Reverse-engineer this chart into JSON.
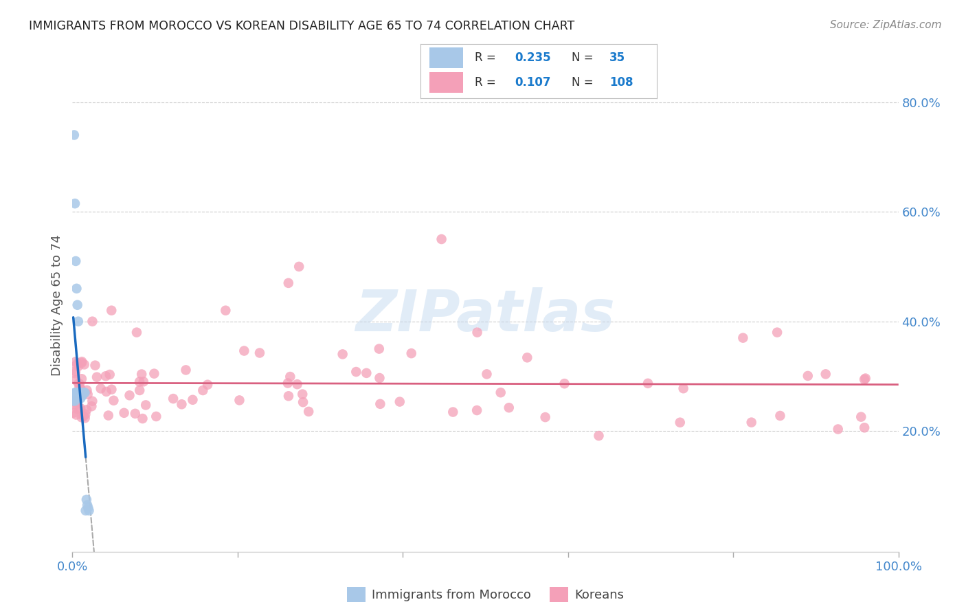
{
  "title": "IMMIGRANTS FROM MOROCCO VS KOREAN DISABILITY AGE 65 TO 74 CORRELATION CHART",
  "source": "Source: ZipAtlas.com",
  "ylabel": "Disability Age 65 to 74",
  "xlim": [
    0,
    1.0
  ],
  "ylim": [
    -0.02,
    0.88
  ],
  "morocco_R": "0.235",
  "morocco_N": "35",
  "korean_R": "0.107",
  "korean_N": "108",
  "morocco_color": "#a8c8e8",
  "korean_color": "#f4a0b8",
  "morocco_line_color": "#1a6abf",
  "korean_line_color": "#d96080",
  "legend_color": "#1a7acc",
  "background_color": "#ffffff",
  "grid_color": "#cccccc",
  "morocco_x": [
    0.001,
    0.001,
    0.002,
    0.002,
    0.003,
    0.003,
    0.003,
    0.004,
    0.004,
    0.004,
    0.005,
    0.005,
    0.005,
    0.006,
    0.006,
    0.007,
    0.007,
    0.007,
    0.008,
    0.008,
    0.009,
    0.009,
    0.01,
    0.01,
    0.011,
    0.011,
    0.012,
    0.013,
    0.014,
    0.015,
    0.016,
    0.017,
    0.018,
    0.019,
    0.02
  ],
  "morocco_y": [
    0.265,
    0.255,
    0.74,
    0.26,
    0.615,
    0.27,
    0.255,
    0.51,
    0.27,
    0.26,
    0.46,
    0.27,
    0.26,
    0.43,
    0.265,
    0.4,
    0.27,
    0.265,
    0.265,
    0.27,
    0.265,
    0.27,
    0.27,
    0.26,
    0.27,
    0.265,
    0.265,
    0.27,
    0.27,
    0.27,
    0.055,
    0.075,
    0.065,
    0.06,
    0.055
  ],
  "korean_x": [
    0.002,
    0.003,
    0.004,
    0.005,
    0.006,
    0.007,
    0.008,
    0.009,
    0.01,
    0.011,
    0.012,
    0.013,
    0.014,
    0.015,
    0.016,
    0.017,
    0.018,
    0.019,
    0.02,
    0.022,
    0.025,
    0.028,
    0.03,
    0.033,
    0.036,
    0.04,
    0.044,
    0.048,
    0.052,
    0.058,
    0.063,
    0.068,
    0.074,
    0.08,
    0.086,
    0.092,
    0.098,
    0.105,
    0.112,
    0.12,
    0.128,
    0.136,
    0.145,
    0.154,
    0.163,
    0.172,
    0.182,
    0.192,
    0.202,
    0.213,
    0.224,
    0.235,
    0.247,
    0.259,
    0.272,
    0.285,
    0.298,
    0.312,
    0.326,
    0.34,
    0.355,
    0.37,
    0.385,
    0.4,
    0.416,
    0.432,
    0.448,
    0.465,
    0.482,
    0.499,
    0.516,
    0.534,
    0.552,
    0.57,
    0.589,
    0.608,
    0.627,
    0.647,
    0.667,
    0.687,
    0.708,
    0.729,
    0.75,
    0.772,
    0.794,
    0.816,
    0.838,
    0.86,
    0.882,
    0.905,
    0.928,
    0.951,
    0.974,
    0.005,
    0.008,
    0.012,
    0.018,
    0.025,
    0.035,
    0.05,
    0.07,
    0.09,
    0.11,
    0.14,
    0.175,
    0.215,
    0.26,
    0.31
  ],
  "korean_y": [
    0.285,
    0.27,
    0.28,
    0.29,
    0.295,
    0.285,
    0.275,
    0.28,
    0.285,
    0.27,
    0.275,
    0.28,
    0.285,
    0.265,
    0.27,
    0.275,
    0.265,
    0.26,
    0.27,
    0.265,
    0.28,
    0.26,
    0.27,
    0.275,
    0.265,
    0.27,
    0.28,
    0.265,
    0.26,
    0.27,
    0.265,
    0.255,
    0.275,
    0.26,
    0.265,
    0.27,
    0.255,
    0.265,
    0.26,
    0.27,
    0.255,
    0.265,
    0.275,
    0.27,
    0.26,
    0.265,
    0.28,
    0.255,
    0.265,
    0.27,
    0.255,
    0.265,
    0.275,
    0.26,
    0.275,
    0.265,
    0.26,
    0.27,
    0.265,
    0.275,
    0.27,
    0.265,
    0.26,
    0.275,
    0.28,
    0.265,
    0.26,
    0.275,
    0.265,
    0.27,
    0.26,
    0.265,
    0.275,
    0.27,
    0.26,
    0.265,
    0.275,
    0.26,
    0.27,
    0.265,
    0.26,
    0.255,
    0.265,
    0.27,
    0.255,
    0.26,
    0.265,
    0.255,
    0.26,
    0.27,
    0.255,
    0.26,
    0.265,
    0.31,
    0.295,
    0.285,
    0.29,
    0.38,
    0.35,
    0.41,
    0.395,
    0.36,
    0.33,
    0.35,
    0.32,
    0.295,
    0.21,
    0.195
  ]
}
